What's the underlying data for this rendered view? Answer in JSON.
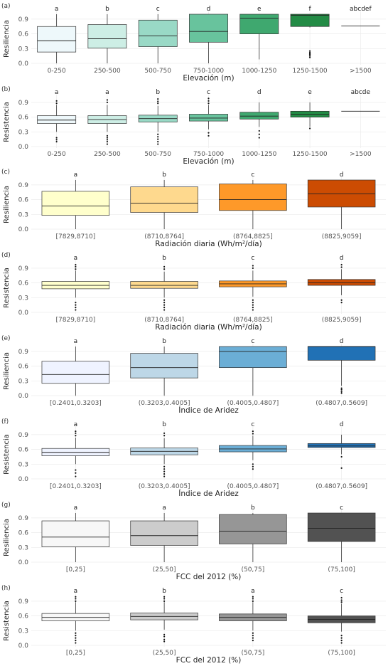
{
  "chart_data": [
    {
      "panel": "(a)",
      "type": "box",
      "ylabel": "Resiliencia",
      "xlabel": "Elevación (m)",
      "ylim": [
        0,
        1
      ],
      "yticks": [
        "0.0",
        "0.3",
        "0.6",
        "0.9"
      ],
      "ytick_values": [
        0,
        0.3,
        0.6,
        0.9
      ],
      "categories": [
        "0-250",
        "250-500",
        "500-750",
        "750-1000",
        "1000-1250",
        "1250-1500",
        ">1500"
      ],
      "letters": [
        "a",
        "b",
        "c",
        "d",
        "e",
        "f",
        "abcdef"
      ],
      "colors": [
        "#eef8fb",
        "#cdeee5",
        "#99d9c6",
        "#68c39d",
        "#3fa86f",
        "#238b45",
        "#1c7a3c"
      ],
      "boxes": [
        {
          "lo": 0.0,
          "q1": 0.23,
          "med": 0.46,
          "q3": 0.75,
          "hi": 1.0,
          "out": []
        },
        {
          "lo": 0.0,
          "q1": 0.31,
          "med": 0.5,
          "q3": 0.79,
          "hi": 1.0,
          "out": []
        },
        {
          "lo": 0.0,
          "q1": 0.34,
          "med": 0.56,
          "q3": 0.88,
          "hi": 1.0,
          "out": []
        },
        {
          "lo": 0.0,
          "q1": 0.43,
          "med": 0.65,
          "q3": 1.0,
          "hi": 1.0,
          "out": []
        },
        {
          "lo": 0.08,
          "q1": 0.6,
          "med": 0.92,
          "q3": 1.0,
          "hi": 1.0,
          "out": []
        },
        {
          "lo": 0.73,
          "q1": 0.75,
          "med": 0.98,
          "q3": 1.0,
          "hi": 1.0,
          "out": [
            0.12,
            0.15,
            0.18,
            0.2,
            0.22,
            0.25
          ]
        },
        {
          "lo": 0.76,
          "q1": 0.76,
          "med": 0.76,
          "q3": 0.76,
          "hi": 0.76,
          "out": []
        }
      ]
    },
    {
      "panel": "(b)",
      "type": "box",
      "ylabel": "Resistencia",
      "xlabel": "Elevación (m)",
      "ylim": [
        0,
        1
      ],
      "yticks": [
        "0.0",
        "0.3",
        "0.6",
        "0.9"
      ],
      "ytick_values": [
        0,
        0.3,
        0.6,
        0.9
      ],
      "categories": [
        "0-250",
        "250-500",
        "500-750",
        "750-1000",
        "1000-1250",
        "1250-1500",
        ">1500"
      ],
      "letters": [
        "a",
        "a",
        "b",
        "c",
        "d",
        "e",
        "abcde"
      ],
      "colors": [
        "#eef8fb",
        "#cdeee5",
        "#99d9c6",
        "#68c39d",
        "#3fa86f",
        "#238b45",
        "#1c7a3c"
      ],
      "boxes": [
        {
          "lo": 0.3,
          "q1": 0.47,
          "med": 0.54,
          "q3": 0.63,
          "hi": 0.85,
          "out": [
            0.1,
            0.14,
            0.18,
            0.88,
            0.93
          ]
        },
        {
          "lo": 0.3,
          "q1": 0.47,
          "med": 0.55,
          "q3": 0.63,
          "hi": 0.85,
          "out": [
            0.05,
            0.1,
            0.14,
            0.18,
            0.22,
            0.9,
            0.95
          ]
        },
        {
          "lo": 0.3,
          "q1": 0.5,
          "med": 0.57,
          "q3": 0.64,
          "hi": 0.83,
          "out": [
            0.05,
            0.1,
            0.15,
            0.2,
            0.25,
            0.88,
            0.92,
            0.97
          ]
        },
        {
          "lo": 0.35,
          "q1": 0.52,
          "med": 0.58,
          "q3": 0.66,
          "hi": 0.85,
          "out": [
            0.22,
            0.28,
            0.88,
            0.93,
            0.98
          ]
        },
        {
          "lo": 0.4,
          "q1": 0.56,
          "med": 0.62,
          "q3": 0.7,
          "hi": 0.9,
          "out": [
            0.18,
            0.25,
            0.32
          ]
        },
        {
          "lo": 0.4,
          "q1": 0.6,
          "med": 0.66,
          "q3": 0.72,
          "hi": 0.9,
          "out": [
            0.37
          ]
        },
        {
          "lo": 0.72,
          "q1": 0.72,
          "med": 0.72,
          "q3": 0.72,
          "hi": 0.72,
          "out": []
        }
      ]
    },
    {
      "panel": "(c)",
      "type": "box",
      "ylabel": "Resiliencia",
      "xlabel": "Radiación diaria (Wh/m²/día)",
      "ylim": [
        0,
        1
      ],
      "yticks": [
        "0.0",
        "0.3",
        "0.6",
        "0.9"
      ],
      "ytick_values": [
        0,
        0.3,
        0.6,
        0.9
      ],
      "categories": [
        "[7829,8710]",
        "(8710,8764]",
        "(8764,8825]",
        "(8825,9059]"
      ],
      "letters": [
        "a",
        "b",
        "c",
        "d"
      ],
      "colors": [
        "#ffffcc",
        "#fed98e",
        "#fe9929",
        "#cc4c02"
      ],
      "boxes": [
        {
          "lo": 0.0,
          "q1": 0.28,
          "med": 0.47,
          "q3": 0.77,
          "hi": 1.0,
          "out": []
        },
        {
          "lo": 0.0,
          "q1": 0.34,
          "med": 0.53,
          "q3": 0.86,
          "hi": 1.0,
          "out": []
        },
        {
          "lo": 0.0,
          "q1": 0.38,
          "med": 0.6,
          "q3": 0.92,
          "hi": 1.0,
          "out": []
        },
        {
          "lo": 0.0,
          "q1": 0.45,
          "med": 0.72,
          "q3": 1.0,
          "hi": 1.0,
          "out": []
        }
      ]
    },
    {
      "panel": "(d)",
      "type": "box",
      "ylabel": "Resistencia",
      "xlabel": "Radiación diaria (Wh/m²/día)",
      "ylim": [
        0,
        1
      ],
      "yticks": [
        "0.0",
        "0.3",
        "0.6",
        "0.9"
      ],
      "ytick_values": [
        0,
        0.3,
        0.6,
        0.9
      ],
      "categories": [
        "[7829,8710]",
        "(8710,8764]",
        "(8764,8825]",
        "(8825,9059]"
      ],
      "letters": [
        "a",
        "b",
        "c",
        "d"
      ],
      "colors": [
        "#ffffcc",
        "#fed98e",
        "#fe9929",
        "#cc4c02"
      ],
      "boxes": [
        {
          "lo": 0.3,
          "q1": 0.48,
          "med": 0.55,
          "q3": 0.63,
          "hi": 0.85,
          "out": [
            0.05,
            0.1,
            0.15,
            0.2,
            0.88,
            0.93,
            0.97
          ]
        },
        {
          "lo": 0.3,
          "q1": 0.49,
          "med": 0.55,
          "q3": 0.63,
          "hi": 0.83,
          "out": [
            0.05,
            0.1,
            0.15,
            0.2,
            0.25,
            0.88,
            0.93
          ]
        },
        {
          "lo": 0.32,
          "q1": 0.52,
          "med": 0.58,
          "q3": 0.64,
          "hi": 0.85,
          "out": [
            0.05,
            0.1,
            0.15,
            0.2,
            0.25,
            0.9,
            0.95
          ]
        },
        {
          "lo": 0.35,
          "q1": 0.55,
          "med": 0.6,
          "q3": 0.67,
          "hi": 0.88,
          "out": [
            0.2,
            0.25,
            0.92,
            0.97
          ]
        }
      ]
    },
    {
      "panel": "(e)",
      "type": "box",
      "ylabel": "Resiliencia",
      "xlabel": "Índice de Aridez",
      "ylim": [
        0,
        1
      ],
      "yticks": [
        "0.0",
        "0.3",
        "0.6",
        "0.9"
      ],
      "ytick_values": [
        0,
        0.3,
        0.6,
        0.9
      ],
      "categories": [
        "[0.2401,0.3203]",
        "(0.3203,0.4005]",
        "(0.4005,0.4807]",
        "(0.4807,0.5609]"
      ],
      "letters": [
        "a",
        "b",
        "c",
        "d"
      ],
      "colors": [
        "#eff3ff",
        "#bdd7e7",
        "#6baed6",
        "#2171b5"
      ],
      "boxes": [
        {
          "lo": 0.0,
          "q1": 0.25,
          "med": 0.43,
          "q3": 0.7,
          "hi": 1.0,
          "out": []
        },
        {
          "lo": 0.0,
          "q1": 0.36,
          "med": 0.57,
          "q3": 0.86,
          "hi": 1.0,
          "out": []
        },
        {
          "lo": 0.0,
          "q1": 0.57,
          "med": 0.9,
          "q3": 1.0,
          "hi": 1.0,
          "out": []
        },
        {
          "lo": 0.2,
          "q1": 0.72,
          "med": 1.0,
          "q3": 1.0,
          "hi": 1.0,
          "out": [
            0.05,
            0.08,
            0.12,
            0.15
          ]
        }
      ]
    },
    {
      "panel": "(f)",
      "type": "box",
      "ylabel": "Resistencia",
      "xlabel": "Índice de Aridez",
      "ylim": [
        0,
        1
      ],
      "yticks": [
        "0.0",
        "0.3",
        "0.6",
        "0.9"
      ],
      "ytick_values": [
        0,
        0.3,
        0.6,
        0.9
      ],
      "categories": [
        "[0.2401,0.3203]",
        "(0.3203,0.4005]",
        "(0.4005,0.4807]",
        "(0.4807,0.5609]"
      ],
      "letters": [
        "a",
        "b",
        "c",
        "d"
      ],
      "colors": [
        "#eff3ff",
        "#bdd7e7",
        "#6baed6",
        "#2171b5"
      ],
      "boxes": [
        {
          "lo": 0.3,
          "q1": 0.47,
          "med": 0.54,
          "q3": 0.62,
          "hi": 0.84,
          "out": [
            0.05,
            0.12,
            0.18,
            0.88,
            0.93,
            0.97
          ]
        },
        {
          "lo": 0.3,
          "q1": 0.49,
          "med": 0.56,
          "q3": 0.63,
          "hi": 0.83,
          "out": [
            0.05,
            0.1,
            0.15,
            0.2,
            0.25,
            0.88,
            0.93
          ]
        },
        {
          "lo": 0.38,
          "q1": 0.55,
          "med": 0.61,
          "q3": 0.68,
          "hi": 0.88,
          "out": [
            0.2,
            0.25,
            0.3,
            0.92,
            0.97
          ]
        },
        {
          "lo": 0.5,
          "q1": 0.64,
          "med": 0.67,
          "q3": 0.72,
          "hi": 0.9,
          "out": [
            0.22,
            0.45
          ]
        }
      ]
    },
    {
      "panel": "(g)",
      "type": "box",
      "ylabel": "Resiliencia",
      "xlabel": "FCC del 2012 (%)",
      "ylim": [
        0,
        1
      ],
      "yticks": [
        "0.0",
        "0.3",
        "0.6",
        "0.9"
      ],
      "ytick_values": [
        0,
        0.3,
        0.6,
        0.9
      ],
      "categories": [
        "[0,25]",
        "(25,50]",
        "(50,75]",
        "(75,100]"
      ],
      "letters": [
        "a",
        "a",
        "b",
        "c"
      ],
      "colors": [
        "#f7f7f7",
        "#cccccc",
        "#969696",
        "#525252"
      ],
      "boxes": [
        {
          "lo": 0.0,
          "q1": 0.31,
          "med": 0.51,
          "q3": 0.84,
          "hi": 1.0,
          "out": []
        },
        {
          "lo": 0.0,
          "q1": 0.34,
          "med": 0.54,
          "q3": 0.84,
          "hi": 1.0,
          "out": []
        },
        {
          "lo": 0.0,
          "q1": 0.37,
          "med": 0.63,
          "q3": 0.97,
          "hi": 1.0,
          "out": []
        },
        {
          "lo": 0.0,
          "q1": 0.42,
          "med": 0.69,
          "q3": 1.0,
          "hi": 1.0,
          "out": []
        }
      ]
    },
    {
      "panel": "(h)",
      "type": "box",
      "ylabel": "Resistencia",
      "xlabel": "FCC del 2012 (%)",
      "ylim": [
        0,
        1
      ],
      "yticks": [
        "0.0",
        "0.3",
        "0.6",
        "0.9"
      ],
      "ytick_values": [
        0,
        0.3,
        0.6,
        0.9
      ],
      "categories": [
        "[0,25]",
        "(25,50]",
        "(50,75]",
        "(75,100]"
      ],
      "letters": [
        "a",
        "b",
        "a",
        "c"
      ],
      "colors": [
        "#f7f7f7",
        "#cccccc",
        "#969696",
        "#525252"
      ],
      "boxes": [
        {
          "lo": 0.3,
          "q1": 0.5,
          "med": 0.57,
          "q3": 0.65,
          "hi": 0.88,
          "out": [
            0.05,
            0.1,
            0.15,
            0.2,
            0.25,
            0.9,
            0.95,
            0.99
          ]
        },
        {
          "lo": 0.32,
          "q1": 0.52,
          "med": 0.59,
          "q3": 0.66,
          "hi": 0.88,
          "out": [
            0.08,
            0.12,
            0.18,
            0.22,
            0.9,
            0.95,
            0.99
          ]
        },
        {
          "lo": 0.3,
          "q1": 0.5,
          "med": 0.57,
          "q3": 0.64,
          "hi": 0.88,
          "out": [
            0.1,
            0.15,
            0.2,
            0.25,
            0.9,
            0.95,
            0.99
          ]
        },
        {
          "lo": 0.28,
          "q1": 0.46,
          "med": 0.53,
          "q3": 0.6,
          "hi": 0.85,
          "out": [
            0.05,
            0.1,
            0.15,
            0.2,
            0.88,
            0.92,
            0.97
          ]
        }
      ]
    }
  ]
}
